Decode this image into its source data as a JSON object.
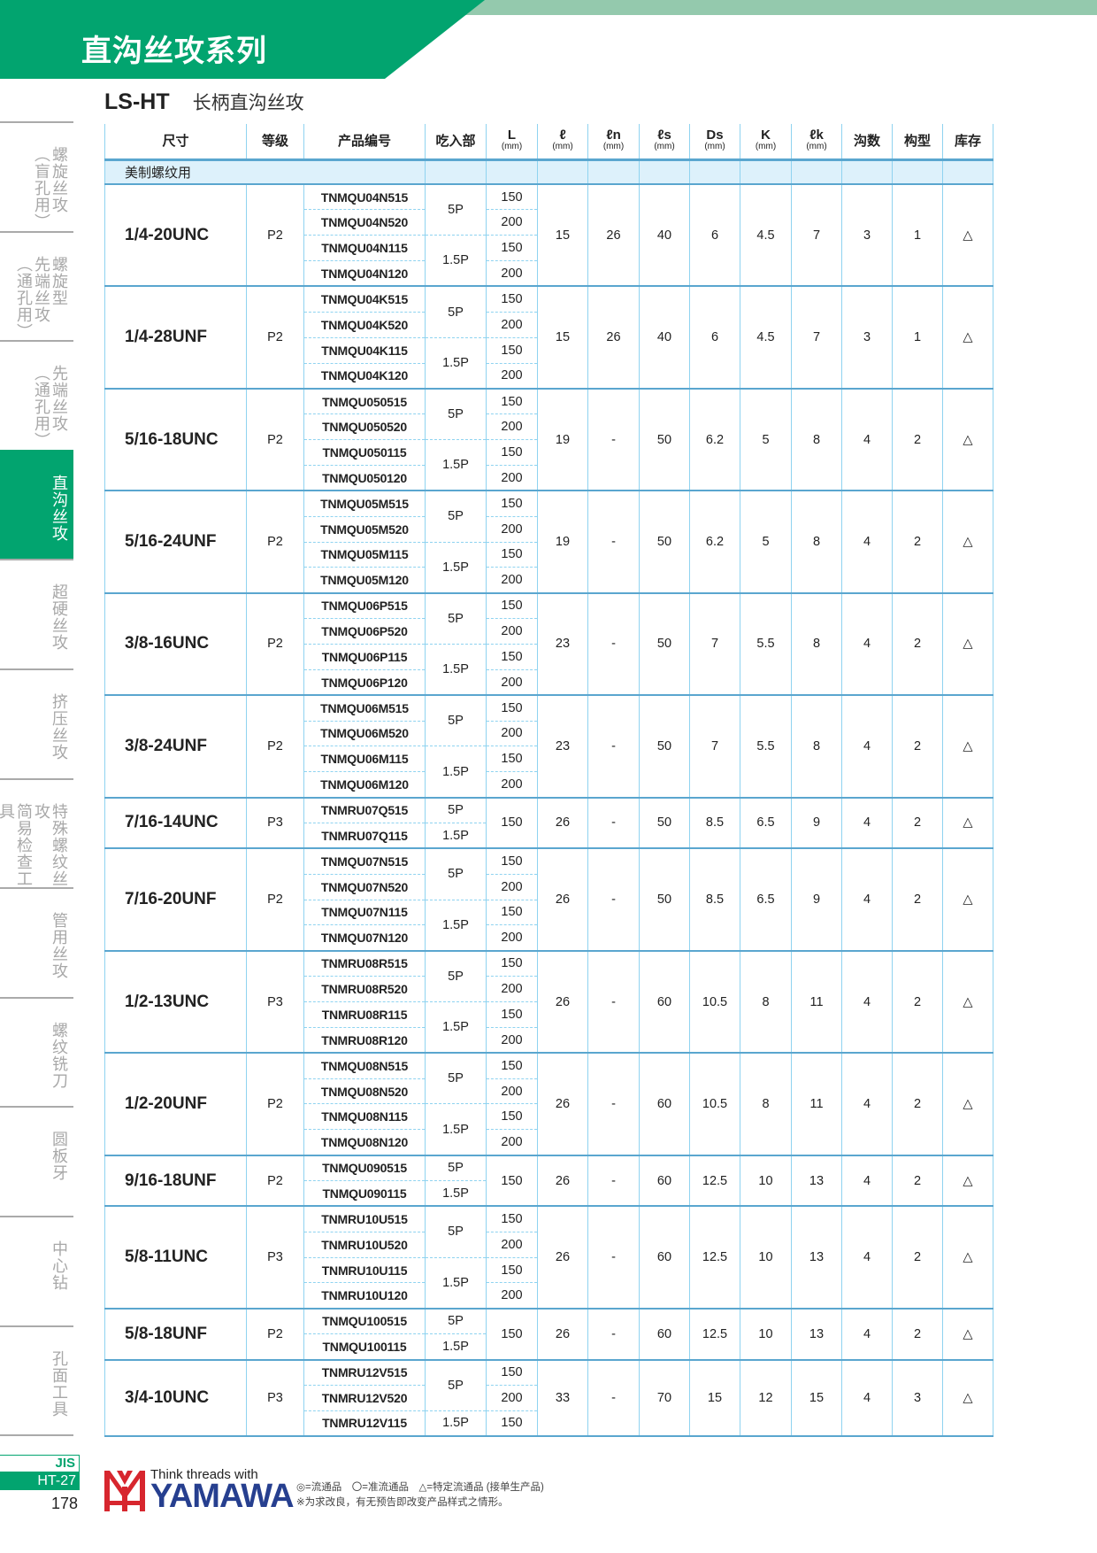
{
  "header": {
    "title": "直沟丝攻系列"
  },
  "subtitle": {
    "code": "LS-HT",
    "name": "长柄直沟丝攻"
  },
  "sidebar": {
    "items": [
      {
        "cols": [
          "螺旋丝攻",
          "（盲孔用）"
        ],
        "active": false
      },
      {
        "cols": [
          "螺旋型",
          "先端丝攻",
          "（通孔用）"
        ],
        "active": false
      },
      {
        "cols": [
          "先端丝攻",
          "（通孔用）"
        ],
        "active": false
      },
      {
        "cols": [
          "直沟丝攻"
        ],
        "active": true
      },
      {
        "cols": [
          "超硬丝攻"
        ],
        "active": false
      },
      {
        "cols": [
          "挤压丝攻"
        ],
        "active": false
      },
      {
        "cols": [
          "特殊螺纹丝攻",
          "简易检查工具"
        ],
        "active": false
      },
      {
        "cols": [
          "管用丝攻"
        ],
        "active": false
      },
      {
        "cols": [
          "螺纹铣刀"
        ],
        "active": false
      },
      {
        "cols": [
          "圆板牙"
        ],
        "active": false
      },
      {
        "cols": [
          "中心钻"
        ],
        "active": false
      },
      {
        "cols": [
          "孔面工具"
        ],
        "active": false
      }
    ]
  },
  "table": {
    "headers": [
      {
        "t": "尺寸"
      },
      {
        "t": "等级"
      },
      {
        "t": "产品编号"
      },
      {
        "t": "吃入部"
      },
      {
        "t": "L",
        "u": "(mm)"
      },
      {
        "t": "ℓ",
        "u": "(mm)"
      },
      {
        "t": "ℓn",
        "u": "(mm)"
      },
      {
        "t": "ℓs",
        "u": "(mm)"
      },
      {
        "t": "Ds",
        "u": "(mm)"
      },
      {
        "t": "K",
        "u": "(mm)"
      },
      {
        "t": "ℓk",
        "u": "(mm)"
      },
      {
        "t": "沟数"
      },
      {
        "t": "构型"
      },
      {
        "t": "库存"
      }
    ],
    "category": "美制螺纹用",
    "groups": [
      {
        "size": "1/4-20UNC",
        "grade": "P2",
        "codes": [
          "TNMQU04N515",
          "TNMQU04N520",
          "TNMQU04N115",
          "TNMQU04N120"
        ],
        "chamfer": [
          [
            "5P",
            2
          ],
          [
            "1.5P",
            2
          ]
        ],
        "L": [
          [
            "150",
            1
          ],
          [
            "200",
            1
          ],
          [
            "150",
            1
          ],
          [
            "200",
            1
          ]
        ],
        "vals": [
          "15",
          "26",
          "40",
          "6",
          "4.5",
          "7",
          "3",
          "1",
          "△"
        ]
      },
      {
        "size": "1/4-28UNF",
        "grade": "P2",
        "codes": [
          "TNMQU04K515",
          "TNMQU04K520",
          "TNMQU04K115",
          "TNMQU04K120"
        ],
        "chamfer": [
          [
            "5P",
            2
          ],
          [
            "1.5P",
            2
          ]
        ],
        "L": [
          [
            "150",
            1
          ],
          [
            "200",
            1
          ],
          [
            "150",
            1
          ],
          [
            "200",
            1
          ]
        ],
        "vals": [
          "15",
          "26",
          "40",
          "6",
          "4.5",
          "7",
          "3",
          "1",
          "△"
        ]
      },
      {
        "size": "5/16-18UNC",
        "grade": "P2",
        "codes": [
          "TNMQU050515",
          "TNMQU050520",
          "TNMQU050115",
          "TNMQU050120"
        ],
        "chamfer": [
          [
            "5P",
            2
          ],
          [
            "1.5P",
            2
          ]
        ],
        "L": [
          [
            "150",
            1
          ],
          [
            "200",
            1
          ],
          [
            "150",
            1
          ],
          [
            "200",
            1
          ]
        ],
        "vals": [
          "19",
          "-",
          "50",
          "6.2",
          "5",
          "8",
          "4",
          "2",
          "△"
        ]
      },
      {
        "size": "5/16-24UNF",
        "grade": "P2",
        "codes": [
          "TNMQU05M515",
          "TNMQU05M520",
          "TNMQU05M115",
          "TNMQU05M120"
        ],
        "chamfer": [
          [
            "5P",
            2
          ],
          [
            "1.5P",
            2
          ]
        ],
        "L": [
          [
            "150",
            1
          ],
          [
            "200",
            1
          ],
          [
            "150",
            1
          ],
          [
            "200",
            1
          ]
        ],
        "vals": [
          "19",
          "-",
          "50",
          "6.2",
          "5",
          "8",
          "4",
          "2",
          "△"
        ]
      },
      {
        "size": "3/8-16UNC",
        "grade": "P2",
        "codes": [
          "TNMQU06P515",
          "TNMQU06P520",
          "TNMQU06P115",
          "TNMQU06P120"
        ],
        "chamfer": [
          [
            "5P",
            2
          ],
          [
            "1.5P",
            2
          ]
        ],
        "L": [
          [
            "150",
            1
          ],
          [
            "200",
            1
          ],
          [
            "150",
            1
          ],
          [
            "200",
            1
          ]
        ],
        "vals": [
          "23",
          "-",
          "50",
          "7",
          "5.5",
          "8",
          "4",
          "2",
          "△"
        ]
      },
      {
        "size": "3/8-24UNF",
        "grade": "P2",
        "codes": [
          "TNMQU06M515",
          "TNMQU06M520",
          "TNMQU06M115",
          "TNMQU06M120"
        ],
        "chamfer": [
          [
            "5P",
            2
          ],
          [
            "1.5P",
            2
          ]
        ],
        "L": [
          [
            "150",
            1
          ],
          [
            "200",
            1
          ],
          [
            "150",
            1
          ],
          [
            "200",
            1
          ]
        ],
        "vals": [
          "23",
          "-",
          "50",
          "7",
          "5.5",
          "8",
          "4",
          "2",
          "△"
        ]
      },
      {
        "size": "7/16-14UNC",
        "grade": "P3",
        "codes": [
          "TNMRU07Q515",
          "TNMRU07Q115"
        ],
        "chamfer": [
          [
            "5P",
            1
          ],
          [
            "1.5P",
            1
          ]
        ],
        "L": [
          [
            "150",
            2
          ]
        ],
        "vals": [
          "26",
          "-",
          "50",
          "8.5",
          "6.5",
          "9",
          "4",
          "2",
          "△"
        ]
      },
      {
        "size": "7/16-20UNF",
        "grade": "P2",
        "codes": [
          "TNMQU07N515",
          "TNMQU07N520",
          "TNMQU07N115",
          "TNMQU07N120"
        ],
        "chamfer": [
          [
            "5P",
            2
          ],
          [
            "1.5P",
            2
          ]
        ],
        "L": [
          [
            "150",
            1
          ],
          [
            "200",
            1
          ],
          [
            "150",
            1
          ],
          [
            "200",
            1
          ]
        ],
        "vals": [
          "26",
          "-",
          "50",
          "8.5",
          "6.5",
          "9",
          "4",
          "2",
          "△"
        ]
      },
      {
        "size": "1/2-13UNC",
        "grade": "P3",
        "codes": [
          "TNMRU08R515",
          "TNMRU08R520",
          "TNMRU08R115",
          "TNMRU08R120"
        ],
        "chamfer": [
          [
            "5P",
            2
          ],
          [
            "1.5P",
            2
          ]
        ],
        "L": [
          [
            "150",
            1
          ],
          [
            "200",
            1
          ],
          [
            "150",
            1
          ],
          [
            "200",
            1
          ]
        ],
        "vals": [
          "26",
          "-",
          "60",
          "10.5",
          "8",
          "11",
          "4",
          "2",
          "△"
        ]
      },
      {
        "size": "1/2-20UNF",
        "grade": "P2",
        "codes": [
          "TNMQU08N515",
          "TNMQU08N520",
          "TNMQU08N115",
          "TNMQU08N120"
        ],
        "chamfer": [
          [
            "5P",
            2
          ],
          [
            "1.5P",
            2
          ]
        ],
        "L": [
          [
            "150",
            1
          ],
          [
            "200",
            1
          ],
          [
            "150",
            1
          ],
          [
            "200",
            1
          ]
        ],
        "vals": [
          "26",
          "-",
          "60",
          "10.5",
          "8",
          "11",
          "4",
          "2",
          "△"
        ]
      },
      {
        "size": "9/16-18UNF",
        "grade": "P2",
        "codes": [
          "TNMQU090515",
          "TNMQU090115"
        ],
        "chamfer": [
          [
            "5P",
            1
          ],
          [
            "1.5P",
            1
          ]
        ],
        "L": [
          [
            "150",
            2
          ]
        ],
        "vals": [
          "26",
          "-",
          "60",
          "12.5",
          "10",
          "13",
          "4",
          "2",
          "△"
        ]
      },
      {
        "size": "5/8-11UNC",
        "grade": "P3",
        "codes": [
          "TNMRU10U515",
          "TNMRU10U520",
          "TNMRU10U115",
          "TNMRU10U120"
        ],
        "chamfer": [
          [
            "5P",
            2
          ],
          [
            "1.5P",
            2
          ]
        ],
        "L": [
          [
            "150",
            1
          ],
          [
            "200",
            1
          ],
          [
            "150",
            1
          ],
          [
            "200",
            1
          ]
        ],
        "vals": [
          "26",
          "-",
          "60",
          "12.5",
          "10",
          "13",
          "4",
          "2",
          "△"
        ]
      },
      {
        "size": "5/8-18UNF",
        "grade": "P2",
        "codes": [
          "TNMQU100515",
          "TNMQU100115"
        ],
        "chamfer": [
          [
            "5P",
            1
          ],
          [
            "1.5P",
            1
          ]
        ],
        "L": [
          [
            "150",
            2
          ]
        ],
        "vals": [
          "26",
          "-",
          "60",
          "12.5",
          "10",
          "13",
          "4",
          "2",
          "△"
        ]
      },
      {
        "size": "3/4-10UNC",
        "grade": "P3",
        "codes": [
          "TNMRU12V515",
          "TNMRU12V520",
          "TNMRU12V115"
        ],
        "chamfer": [
          [
            "5P",
            2
          ],
          [
            "1.5P",
            1
          ]
        ],
        "L": [
          [
            "150",
            1
          ],
          [
            "200",
            1
          ],
          [
            "150",
            1
          ]
        ],
        "vals": [
          "33",
          "-",
          "70",
          "15",
          "12",
          "15",
          "4",
          "3",
          "△"
        ]
      }
    ]
  },
  "footer": {
    "standard": "JIS",
    "section": "HT-27",
    "page": "178",
    "logo_tagline": "Think threads with",
    "logo_brand": "YAMAWA",
    "legend": "◎=流通品　〇=准流通品　△=特定流通品 (接单生产品)",
    "note": "※为求改良，有无预告即改变产品样式之情形。"
  },
  "colors": {
    "brand_green": "#02a46f",
    "light_green": "#94c9ad",
    "table_line": "#8fd3f0",
    "category_bg": "#ddf1fb",
    "logo_red": "#d7262e",
    "logo_blue": "#263f8f"
  }
}
